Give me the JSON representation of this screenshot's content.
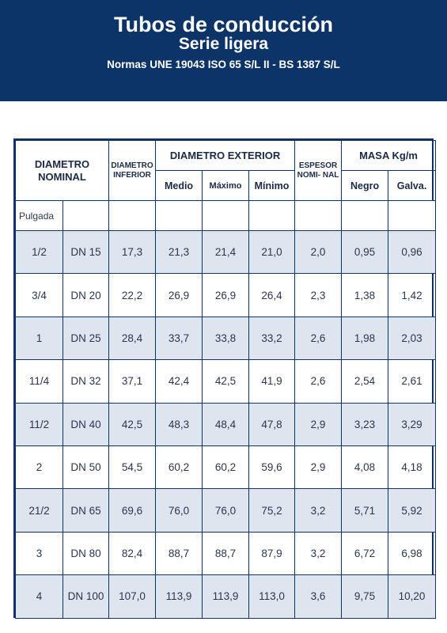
{
  "header": {
    "title": "Tubos de conducción",
    "subtitle": "Serie ligera",
    "norms": "Normas UNE 19043 ISO 65 S/L II - BS 1387 S/L"
  },
  "table": {
    "col_nominal": "DIAMETRO NOMINAL",
    "col_inferior": "DIAMETRO INFERIOR",
    "col_exterior": "DIAMETRO EXTERIOR",
    "col_espesor": "ESPESOR NOMI- NAL",
    "col_masa": "MASA Kg/m",
    "sub_medio": "Medio",
    "sub_maximo": "Máximo",
    "sub_minimo": "Mínimo",
    "sub_negro": "Negro",
    "sub_galva": "Galva.",
    "unit_pulgada": "Pulgada",
    "rows": [
      {
        "pulg": "1/2",
        "dn": "DN 15",
        "inf": "17,3",
        "medio": "21,3",
        "max": "21,4",
        "min": "21,0",
        "esp": "2,0",
        "negro": "0,95",
        "galva": "0,96"
      },
      {
        "pulg": "3/4",
        "dn": "DN 20",
        "inf": "22,2",
        "medio": "26,9",
        "max": "26,9",
        "min": "26,4",
        "esp": "2,3",
        "negro": "1,38",
        "galva": "1,42"
      },
      {
        "pulg": "1",
        "dn": "DN 25",
        "inf": "28,4",
        "medio": "33,7",
        "max": "33,8",
        "min": "33,2",
        "esp": "2,6",
        "negro": "1,98",
        "galva": "2,03"
      },
      {
        "pulg": "11/4",
        "dn": "DN 32",
        "inf": "37,1",
        "medio": "42,4",
        "max": "42,5",
        "min": "41,9",
        "esp": "2,6",
        "negro": "2,54",
        "galva": "2,61"
      },
      {
        "pulg": "11/2",
        "dn": "DN 40",
        "inf": "42,5",
        "medio": "48,3",
        "max": "48,4",
        "min": "47,8",
        "esp": "2,9",
        "negro": "3,23",
        "galva": "3,29"
      },
      {
        "pulg": "2",
        "dn": "DN 50",
        "inf": "54,5",
        "medio": "60,2",
        "max": "60,2",
        "min": "59,6",
        "esp": "2,9",
        "negro": "4,08",
        "galva": "4,18"
      },
      {
        "pulg": "21/2",
        "dn": "DN 65",
        "inf": "69,6",
        "medio": "76,0",
        "max": "76,0",
        "min": "75,2",
        "esp": "3,2",
        "negro": "5,71",
        "galva": "5,92"
      },
      {
        "pulg": "3",
        "dn": "DN 80",
        "inf": "82,4",
        "medio": "88,7",
        "max": "88,7",
        "min": "87,9",
        "esp": "3,2",
        "negro": "6,72",
        "galva": "6,98"
      },
      {
        "pulg": "4",
        "dn": "DN 100",
        "inf": "107,0",
        "medio": "113,9",
        "max": "113,9",
        "min": "113,0",
        "esp": "3,6",
        "negro": "9,75",
        "galva": "10,20"
      }
    ]
  },
  "colors": {
    "banner": "#0d3468",
    "border": "#0d3468",
    "row_shade": "#dfe5ef"
  }
}
